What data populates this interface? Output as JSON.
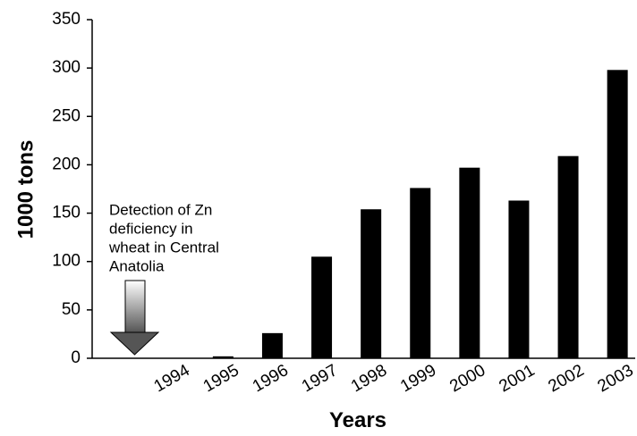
{
  "chart_data": {
    "type": "bar",
    "categories": [
      "1994",
      "1995",
      "1996",
      "1997",
      "1998",
      "1999",
      "2000",
      "2001",
      "2002",
      "2003"
    ],
    "values": [
      0,
      2,
      26,
      105,
      154,
      176,
      197,
      163,
      209,
      298
    ],
    "color": "#000000",
    "ylim": [
      0,
      350
    ],
    "yticks": [
      0,
      50,
      100,
      150,
      200,
      250,
      300,
      350
    ],
    "y_label": "1000 tons",
    "x_label": "Years",
    "annotation": [
      "Detection of Zn",
      "deficiency in",
      "wheat in Central",
      "Anatolia"
    ],
    "grid": false
  }
}
